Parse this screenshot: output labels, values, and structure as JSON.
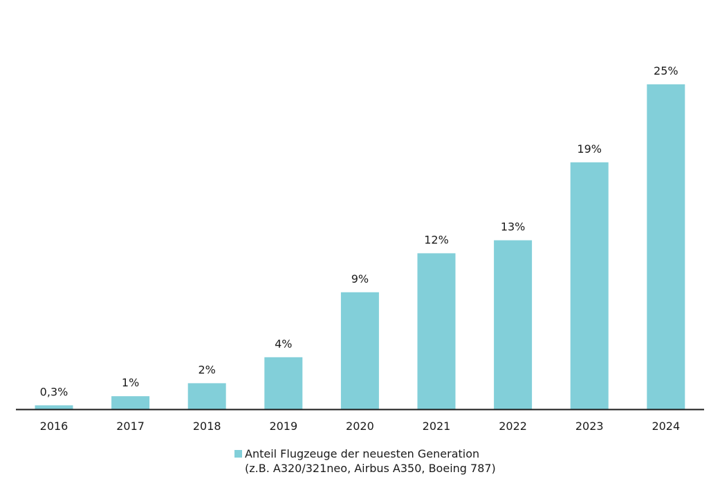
{
  "chart_data": {
    "type": "bar",
    "categories": [
      "2016",
      "2017",
      "2018",
      "2019",
      "2020",
      "2021",
      "2022",
      "2023",
      "2024"
    ],
    "series": [
      {
        "name": "Anteil Flugzeuge der neuesten Generation",
        "values": [
          0.3,
          1,
          2,
          4,
          9,
          12,
          13,
          19,
          25
        ],
        "labels": [
          "0,3%",
          "1%",
          "2%",
          "4%",
          "9%",
          "12%",
          "13%",
          "19%",
          "25%"
        ]
      }
    ],
    "legend": {
      "placement": "bottom",
      "line1": "Anteil Flugzeuge der neuesten Generation",
      "line2": "(z.B. A320/321neo, Airbus A350, Boeing 787)"
    },
    "ylim": [
      0,
      25
    ],
    "grid": false,
    "colors": {
      "bar": "#82cfd9",
      "axis": "#1a1a1a"
    }
  }
}
